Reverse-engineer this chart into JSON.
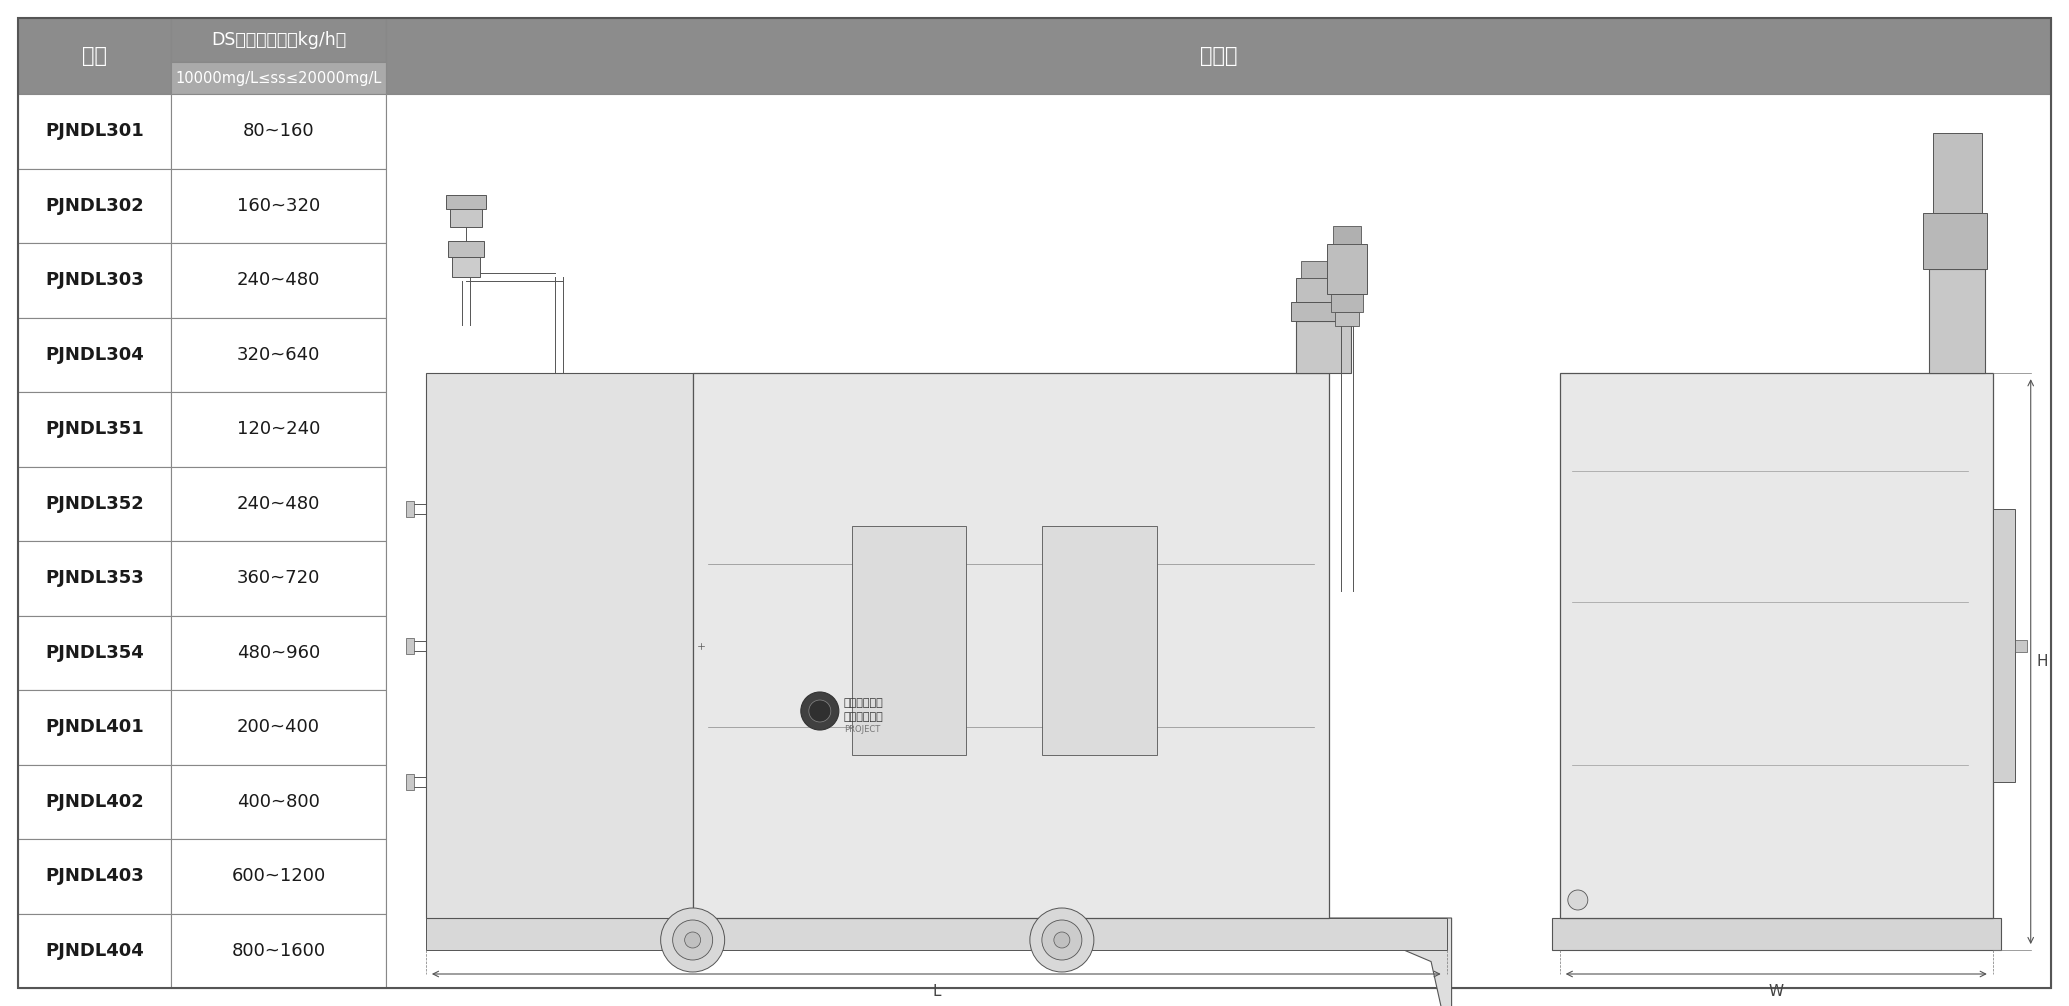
{
  "col1_header": "机型",
  "col2_header_top": "DS标准处理量（kg/h）",
  "col2_header_bottom": "10000mg/L≤ss≤20000mg/L",
  "col3_header": "外形图",
  "models": [
    "PJNDL301",
    "PJNDL302",
    "PJNDL303",
    "PJNDL304",
    "PJNDL351",
    "PJNDL352",
    "PJNDL353",
    "PJNDL354",
    "PJNDL401",
    "PJNDL402",
    "PJNDL403",
    "PJNDL404"
  ],
  "values": [
    "80~160",
    "160~320",
    "240~480",
    "320~640",
    "120~240",
    "240~480",
    "360~720",
    "480~960",
    "200~400",
    "400~800",
    "600~1200",
    "800~1600"
  ],
  "header_bg": "#8c8c8c",
  "subheader_bg": "#aaaaaa",
  "header_text_color": "#ffffff",
  "cell_text_color": "#1a1a1a",
  "border_color": "#888888",
  "bg_color": "#ffffff",
  "fig_bg": "#ffffff",
  "outer_border": "#666666"
}
